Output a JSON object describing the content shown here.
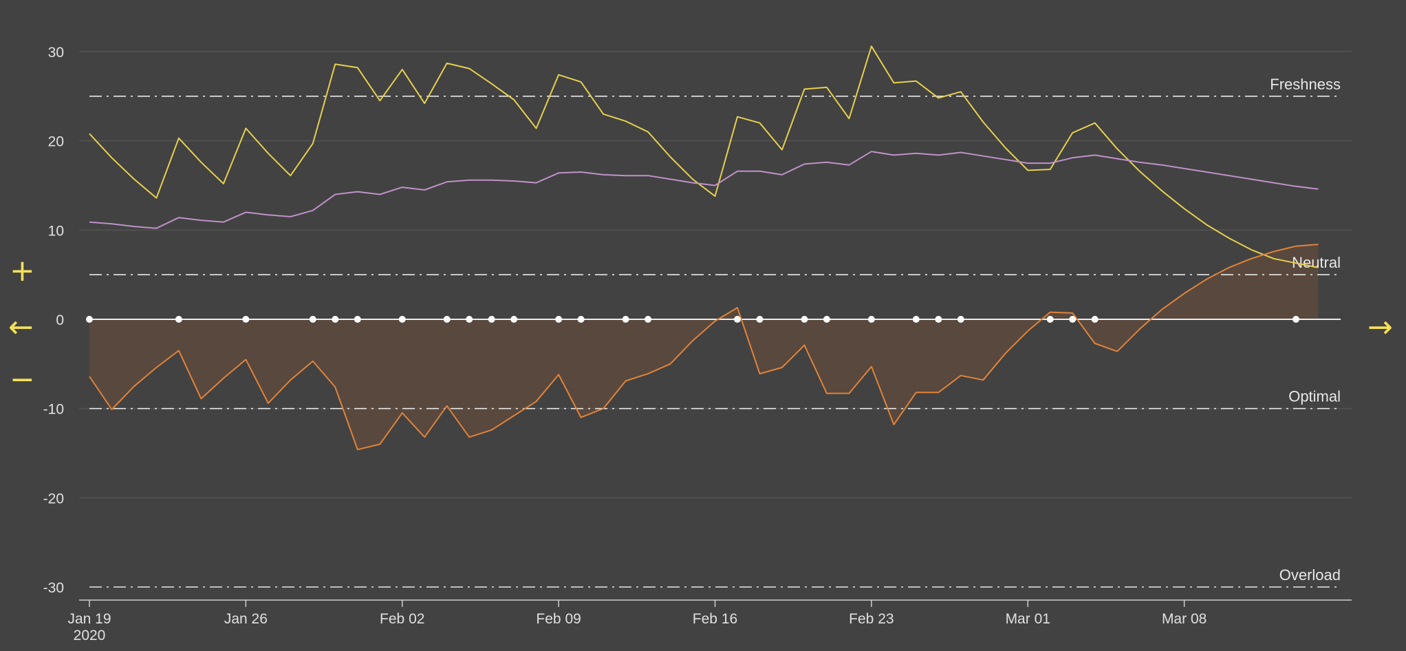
{
  "chart_data": {
    "type": "line",
    "xlabel": "",
    "ylabel": "",
    "title": "",
    "ylim": [
      -30,
      30
    ],
    "y_ticks": [
      30,
      20,
      10,
      0,
      -10,
      -20,
      -30
    ],
    "x_range": [
      "2020-01-19",
      "2020-03-15"
    ],
    "x_ticks": [
      {
        "date": "2020-01-19",
        "label": "Jan 19",
        "sublabel": "2020"
      },
      {
        "date": "2020-01-26",
        "label": "Jan 26",
        "sublabel": ""
      },
      {
        "date": "2020-02-02",
        "label": "Feb 02",
        "sublabel": ""
      },
      {
        "date": "2020-02-09",
        "label": "Feb 09",
        "sublabel": ""
      },
      {
        "date": "2020-02-16",
        "label": "Feb 16",
        "sublabel": ""
      },
      {
        "date": "2020-02-23",
        "label": "Feb 23",
        "sublabel": ""
      },
      {
        "date": "2020-03-01",
        "label": "Mar 01",
        "sublabel": ""
      },
      {
        "date": "2020-03-08",
        "label": "Mar 08",
        "sublabel": ""
      }
    ],
    "grid": true,
    "zones": [
      {
        "value": 25,
        "label": "Freshness"
      },
      {
        "value": 5,
        "label": "Neutral"
      },
      {
        "value": -10,
        "label": "Optimal"
      },
      {
        "value": -30,
        "label": "Overload"
      }
    ],
    "series": [
      {
        "color": "#e6d04e",
        "values": [
          20.8,
          18.1,
          15.7,
          13.6,
          20.3,
          17.6,
          15.2,
          21.4,
          18.6,
          16.1,
          19.7,
          28.6,
          28.2,
          24.5,
          28.0,
          24.2,
          28.7,
          28.1,
          26.4,
          24.6,
          21.4,
          27.4,
          26.6,
          23.0,
          22.2,
          21.0,
          18.2,
          15.7,
          13.8,
          22.7,
          22.0,
          19.0,
          25.8,
          26.0,
          22.5,
          30.6,
          26.5,
          26.7,
          24.8,
          25.5,
          22.1,
          19.2,
          16.7,
          16.8,
          20.9,
          22.0,
          19.1,
          16.6,
          14.4,
          12.4,
          10.6,
          9.1,
          7.8,
          6.8,
          6.3,
          5.8
        ]
      },
      {
        "color": "#bf92c9",
        "values": [
          10.9,
          10.7,
          10.4,
          10.2,
          11.4,
          11.1,
          10.9,
          12.0,
          11.7,
          11.5,
          12.2,
          14.0,
          14.3,
          14.0,
          14.8,
          14.5,
          15.4,
          15.6,
          15.6,
          15.5,
          15.3,
          16.4,
          16.5,
          16.2,
          16.1,
          16.1,
          15.7,
          15.3,
          15.0,
          16.6,
          16.6,
          16.2,
          17.4,
          17.6,
          17.3,
          18.8,
          18.4,
          18.6,
          18.4,
          18.7,
          18.3,
          17.9,
          17.5,
          17.5,
          18.1,
          18.4,
          18.0,
          17.6,
          17.3,
          16.9,
          16.5,
          16.1,
          15.7,
          15.3,
          14.9,
          14.6
        ]
      },
      {
        "color": "#e0843a",
        "fill": true,
        "values": [
          -6.4,
          -10.1,
          -7.5,
          -5.4,
          -3.5,
          -8.9,
          -6.6,
          -4.5,
          -9.4,
          -6.8,
          -4.7,
          -7.6,
          -14.6,
          -14.0,
          -10.5,
          -13.2,
          -9.7,
          -13.2,
          -12.4,
          -10.8,
          -9.2,
          -6.2,
          -11.0,
          -10.0,
          -6.9,
          -6.1,
          -5.0,
          -2.4,
          -0.2,
          1.3,
          -6.1,
          -5.4,
          -2.9,
          -8.3,
          -8.3,
          -5.3,
          -11.8,
          -8.2,
          -8.2,
          -6.3,
          -6.8,
          -3.8,
          -1.3,
          0.8,
          0.7,
          -2.7,
          -3.6,
          -1.1,
          1.1,
          2.9,
          4.5,
          5.8,
          6.8,
          7.6,
          8.2,
          8.4
        ]
      }
    ],
    "activity_dots": [
      0,
      4,
      7,
      10,
      11,
      12,
      14,
      16,
      17,
      18,
      19,
      21,
      22,
      24,
      25,
      29,
      30,
      32,
      33,
      35,
      37,
      38,
      39,
      43,
      44,
      45,
      54
    ]
  },
  "nav": {
    "plus": "+",
    "minus": "−",
    "left": "←",
    "right": "→",
    "accent": "#f5e05a"
  }
}
